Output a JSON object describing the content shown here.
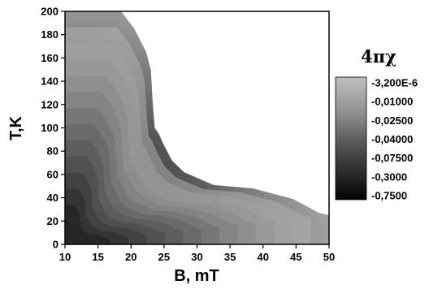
{
  "chart_data": {
    "type": "heatmap",
    "subtype": "filled-contour",
    "xlabel": "B, mT",
    "ylabel": "T,K",
    "xlim": [
      10,
      50
    ],
    "ylim": [
      0,
      200
    ],
    "x_ticks": [
      "10",
      "15",
      "20",
      "25",
      "30",
      "35",
      "40",
      "45",
      "50"
    ],
    "y_ticks": [
      "0",
      "20",
      "40",
      "60",
      "80",
      "100",
      "120",
      "140",
      "160",
      "180",
      "200"
    ],
    "legend": {
      "title": "4πχ",
      "placement": "right",
      "levels": [
        "-3,200E-6",
        "-0,01000",
        "-0,02500",
        "-0,04000",
        "-0,07500",
        "-0,3000",
        "-0,7500"
      ]
    },
    "colors": {
      "weakest": "#b5b5b5",
      "strongest": "#0c0c0c",
      "region_above_boundary": "#ffffff"
    },
    "boundary": [
      {
        "B": 10,
        "T": 200
      },
      {
        "B": 18.5,
        "T": 200
      },
      {
        "B": 20.5,
        "T": 185
      },
      {
        "B": 22.3,
        "T": 165
      },
      {
        "B": 23.0,
        "T": 150
      },
      {
        "B": 23.3,
        "T": 120
      },
      {
        "B": 23.6,
        "T": 100
      },
      {
        "B": 24.2,
        "T": 95
      },
      {
        "B": 25.0,
        "T": 85
      },
      {
        "B": 26.2,
        "T": 72
      },
      {
        "B": 28.0,
        "T": 62
      },
      {
        "B": 32.5,
        "T": 51
      },
      {
        "B": 38.5,
        "T": 48
      },
      {
        "B": 44.5,
        "T": 39
      },
      {
        "B": 48.5,
        "T": 27
      },
      {
        "B": 50,
        "T": 25
      }
    ]
  }
}
